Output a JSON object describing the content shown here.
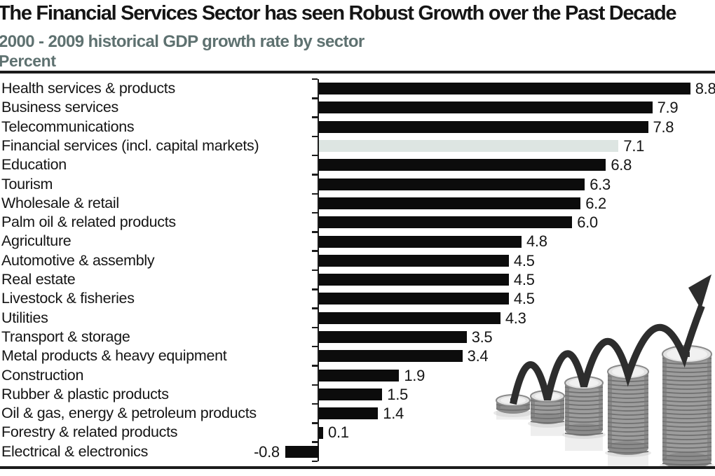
{
  "header": {
    "title": "The Financial Services Sector has seen Robust Growth over the Past Decade",
    "subtitle": "2000 - 2009 historical GDP growth rate by sector",
    "unit_label": "Percent"
  },
  "colors": {
    "bar": "#0c0c0c",
    "highlight_bar": "#dde5e2",
    "subtitle_text": "#5e7170",
    "rule": "#1b1b1b",
    "label_text": "#151515"
  },
  "chart_data": {
    "type": "bar",
    "orientation": "horizontal",
    "title": "The Financial Services Sector has seen Robust Growth over the Past Decade",
    "subtitle": "2000 - 2009 historical GDP growth rate by sector",
    "xlabel": "Percent",
    "ylabel": "",
    "xlim": [
      -1,
      9.4
    ],
    "grid": false,
    "legend": "none",
    "categories": [
      "Health services & products",
      "Business services",
      "Telecommunications",
      "Financial services (incl. capital markets)",
      "Education",
      "Tourism",
      "Wholesale & retail",
      "Palm oil & related products",
      "Agriculture",
      "Automotive & assembly",
      "Real estate",
      "Livestock & fisheries",
      "Utilities",
      "Transport & storage",
      "Metal products & heavy equipment",
      "Construction",
      "Rubber & plastic products",
      "Oil & gas, energy & petroleum products",
      "Forestry & related products",
      "Electrical & electronics"
    ],
    "values": [
      8.8,
      7.9,
      7.8,
      7.1,
      6.8,
      6.3,
      6.2,
      6.0,
      4.8,
      4.5,
      4.5,
      4.5,
      4.3,
      3.5,
      3.4,
      1.9,
      1.5,
      1.4,
      0.1,
      -0.8
    ],
    "value_labels": [
      "8.8",
      "7.9",
      "7.8",
      "7.1",
      "6.8",
      "6.3",
      "6.2",
      "6.0",
      "4.8",
      "4.5",
      "4.5",
      "4.5",
      "4.3",
      "3.5",
      "3.4",
      "1.9",
      "1.5",
      "1.4",
      "0.1",
      "-0.8"
    ],
    "highlight_index": 3,
    "highlighted_category": "Financial services (incl. capital markets)"
  },
  "illustration": {
    "description": "grayscale stacks of coins increasing in height with a dark arrow bouncing across them and pointing up-right"
  }
}
